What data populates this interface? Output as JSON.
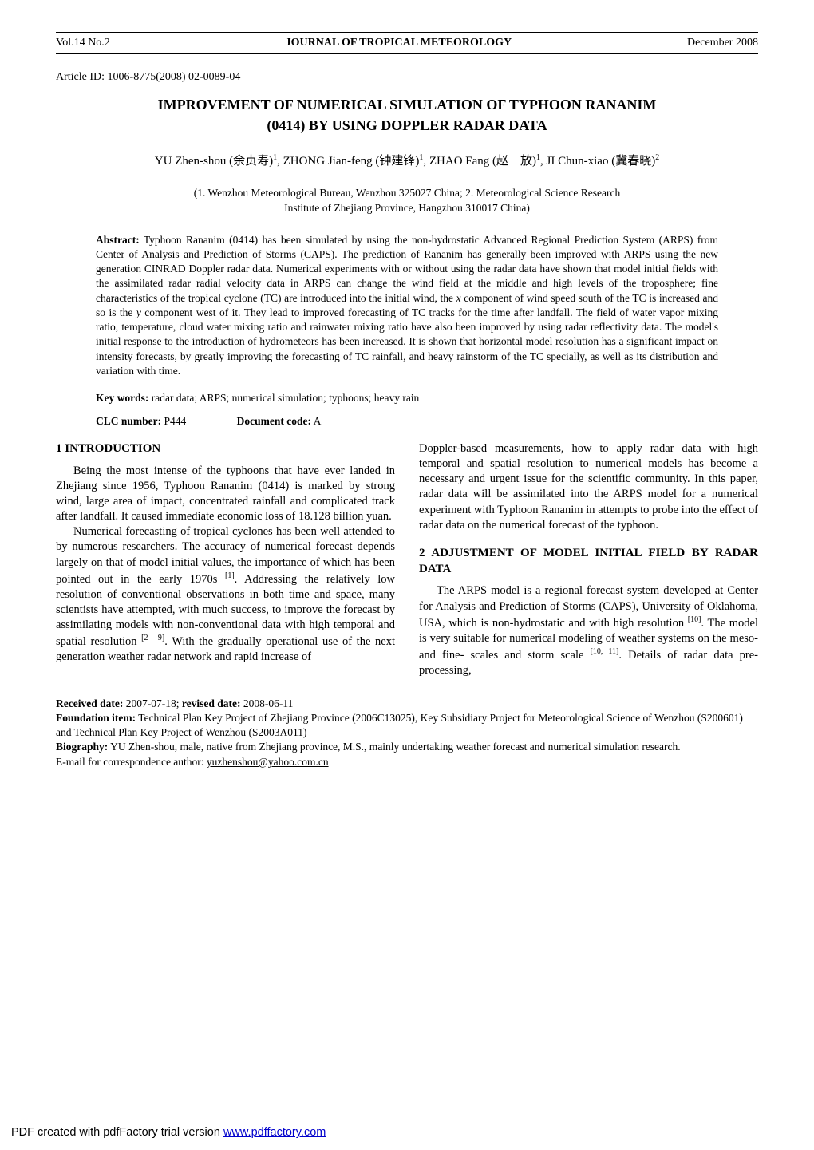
{
  "header": {
    "left": "Vol.14 No.2",
    "center": "JOURNAL OF TROPICAL METEOROLOGY",
    "right": "December 2008"
  },
  "article_id": "Article ID: 1006-8775(2008) 02-0089-04",
  "title": {
    "line1": "IMPROVEMENT OF NUMERICAL SIMULATION OF TYPHOON RANANIM",
    "line2": "(0414) BY USING DOPPLER RADAR DATA"
  },
  "authors_html": "YU Zhen-shou (余贞寿)<sup>1</sup>, ZHONG Jian-feng (钟建锋)<sup>1</sup>, ZHAO Fang (赵　放)<sup>1</sup>, JI Chun-xiao (冀春晓)<sup>2</sup>",
  "affiliations": [
    "(1. Wenzhou Meteorological Bureau, Wenzhou 325027 China; 2. Meteorological Science Research",
    "Institute of Zhejiang Province, Hangzhou 310017 China)"
  ],
  "abstract_label": "Abstract:",
  "abstract_body": " Typhoon Rananim (0414) has been simulated by using the non-hydrostatic Advanced Regional Prediction System (ARPS) from Center of Analysis and Prediction of Storms (CAPS). The prediction of Rananim has generally been improved with ARPS using the new generation CINRAD Doppler radar data. Numerical experiments with or without using the radar data have shown that model initial fields with the assimilated radar radial velocity data in ARPS can change the wind field at the middle and high levels of the troposphere; fine characteristics of the tropical cyclone (TC) are introduced into the initial wind, the <span class=\"italic\">x</span> component of wind speed south of the TC is increased and so is the <span class=\"italic\">y</span> component west of it. They lead to improved forecasting of TC tracks for the time after landfall. The field of water vapor mixing ratio, temperature, cloud water mixing ratio and rainwater mixing ratio have also been improved by using radar reflectivity data. The model's initial response to the introduction of hydrometeors has been increased. It is shown that horizontal model resolution has a significant impact on intensity forecasts, by greatly improving the forecasting of TC rainfall, and heavy rainstorm of the TC specially, as well as its distribution and variation with time.",
  "keywords_label": "Key words:",
  "keywords_body": " radar data; ARPS; numerical simulation; typhoons; heavy rain",
  "clc_label": "CLC number:",
  "clc_value": " P444",
  "doc_label": "Document code:",
  "doc_value": " A",
  "left_col": {
    "heading": "1   INTRODUCTION",
    "p1": "Being the most intense of the typhoons that have ever landed in Zhejiang since 1956, Typhoon Rananim (0414) is marked by strong wind, large area of impact, concentrated rainfall and complicated track after landfall. It caused immediate economic loss of 18.128 billion yuan.",
    "p2_html": "Numerical forecasting of tropical cyclones has been well attended to by numerous researchers. The accuracy of numerical forecast depends largely on that of model initial values, the importance of which has been pointed out in the early 1970s <sup class=\"ref\">[1]</sup>. Addressing the relatively low resolution of conventional observations in both time and space, many scientists have attempted, with much success, to improve the forecast by assimilating models with non-conventional data with high temporal and spatial resolution <sup class=\"ref\">[2 - 9]</sup>. With the gradually operational use of the next generation weather radar network and rapid increase of"
  },
  "right_col": {
    "top": "Doppler-based measurements, how to apply radar data with high temporal and spatial resolution to numerical models has become a necessary and urgent issue for the scientific community. In this paper, radar data will be assimilated into the ARPS model for a numerical experiment with Typhoon Rananim in attempts to probe into the effect of radar data on the numerical forecast of the typhoon.",
    "heading": "2   ADJUSTMENT OF MODEL INITIAL FIELD BY RADAR DATA",
    "p1_html": "The ARPS model is a regional forecast system developed at Center for Analysis and Prediction of Storms (CAPS), University of Oklahoma, USA, which is non-hydrostatic and with high resolution <sup class=\"ref\">[10]</sup>. The model is very suitable for numerical modeling of weather systems on the meso- and fine- scales and storm scale <sup class=\"ref\">[10, 11]</sup>. Details of radar data pre-processing,"
  },
  "footnotes": {
    "received_label": "Received date:",
    "received_val": " 2007-07-18; ",
    "revised_label": "revised date:",
    "revised_val": " 2008-06-11",
    "foundation_label": "Foundation item:",
    "foundation_body": " Technical Plan Key Project of Zhejiang Province (2006C13025), Key Subsidiary Project for Meteorological Science of Wenzhou (S200601) and Technical Plan Key Project of Wenzhou (S2003A011)",
    "bio_label": "Biography:",
    "bio_body": " YU Zhen-shou, male, native from Zhejiang province, M.S., mainly undertaking weather forecast and numerical simulation research.",
    "email_line_pre": "E-mail for correspondence author: ",
    "email": "yuzhenshou@yahoo.com.cn"
  },
  "watermark": {
    "prefix": "PDF created with pdfFactory trial version ",
    "link_text": "www.pdffactory.com"
  },
  "colors": {
    "text": "#000000",
    "background": "#ffffff",
    "link": "#0000cc"
  }
}
